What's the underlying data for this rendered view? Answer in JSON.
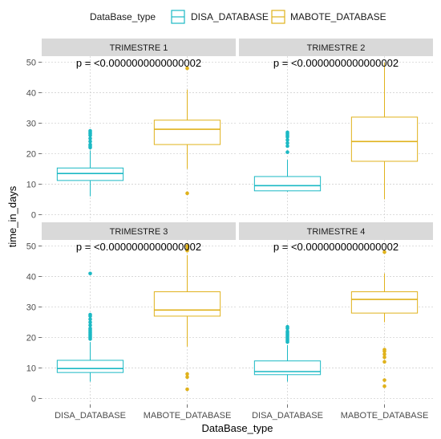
{
  "legend": {
    "title": "DataBase_type",
    "entries": [
      {
        "name": "DISA_DATABASE",
        "color": "#1BB9C4"
      },
      {
        "name": "MABOTE_DATABASE",
        "color": "#E0B21C"
      }
    ],
    "placement": "top"
  },
  "chart_data": [
    {
      "type": "box",
      "title": "TRIMESTRE 1",
      "annotation": "p = <0.0000000000000002",
      "categories": [
        "DISA_DATABASE",
        "MABOTE_DATABASE"
      ],
      "boxes": [
        {
          "category": "DISA_DATABASE",
          "whisker_low": 6,
          "q1": 11.2,
          "median": 13.5,
          "q3": 15.3,
          "whisker_high": 21,
          "outliers": [
            22,
            22.5,
            23,
            24,
            25,
            26,
            26.5,
            27,
            27.5
          ]
        },
        {
          "category": "MABOTE_DATABASE",
          "whisker_low": 15,
          "q1": 23,
          "median": 28,
          "q3": 31,
          "whisker_high": 41,
          "outliers": [
            7,
            48
          ]
        }
      ]
    },
    {
      "type": "box",
      "title": "TRIMESTRE 2",
      "annotation": "p = <0.0000000000000002",
      "categories": [
        "DISA_DATABASE",
        "MABOTE_DATABASE"
      ],
      "boxes": [
        {
          "category": "DISA_DATABASE",
          "whisker_low": 7.5,
          "q1": 7.8,
          "median": 9.5,
          "q3": 12.5,
          "whisker_high": 18,
          "outliers": [
            20.5,
            22.5,
            23.5,
            24.5,
            25.5,
            26,
            26.5,
            27
          ]
        },
        {
          "category": "MABOTE_DATABASE",
          "whisker_low": 5,
          "q1": 17.5,
          "median": 24,
          "q3": 32,
          "whisker_high": 50,
          "outliers": []
        }
      ]
    },
    {
      "type": "box",
      "title": "TRIMESTRE 3",
      "annotation": "p = <0.0000000000000002",
      "categories": [
        "DISA_DATABASE",
        "MABOTE_DATABASE"
      ],
      "boxes": [
        {
          "category": "DISA_DATABASE",
          "whisker_low": 5.5,
          "q1": 8.5,
          "median": 9.8,
          "q3": 12.5,
          "whisker_high": 18.5,
          "outliers": [
            19.5,
            20,
            20.5,
            21,
            21.5,
            22,
            22.5,
            23,
            24,
            25,
            26,
            27,
            27.5,
            41
          ]
        },
        {
          "category": "MABOTE_DATABASE",
          "whisker_low": 17,
          "q1": 27,
          "median": 29,
          "q3": 35,
          "whisker_high": 47,
          "outliers": [
            3,
            7,
            8,
            48.5,
            49,
            50
          ]
        }
      ]
    },
    {
      "type": "box",
      "title": "TRIMESTRE 4",
      "annotation": "p = <0.0000000000000002",
      "categories": [
        "DISA_DATABASE",
        "MABOTE_DATABASE"
      ],
      "boxes": [
        {
          "category": "DISA_DATABASE",
          "whisker_low": 5.5,
          "q1": 7.8,
          "median": 8.8,
          "q3": 12.3,
          "whisker_high": 17.5,
          "outliers": [
            18.5,
            19,
            19.5,
            20,
            20.5,
            21,
            21.5,
            22,
            23,
            23.5
          ]
        },
        {
          "category": "MABOTE_DATABASE",
          "whisker_low": 25,
          "q1": 28,
          "median": 32.5,
          "q3": 35,
          "whisker_high": 41,
          "outliers": [
            4,
            6,
            12,
            13.5,
            14.5,
            15.5,
            16,
            48
          ]
        }
      ]
    }
  ],
  "axes": {
    "xlabel": "DataBase_type",
    "ylabel": "time_in_days",
    "ylim": [
      -2,
      52
    ],
    "yticks": [
      0,
      10,
      20,
      30,
      40,
      50
    ],
    "grid": true
  },
  "colors": {
    "panel_bg": "#FFFFFF",
    "strip_bg": "#D9D9D9",
    "grid": "#D3D3D3"
  }
}
